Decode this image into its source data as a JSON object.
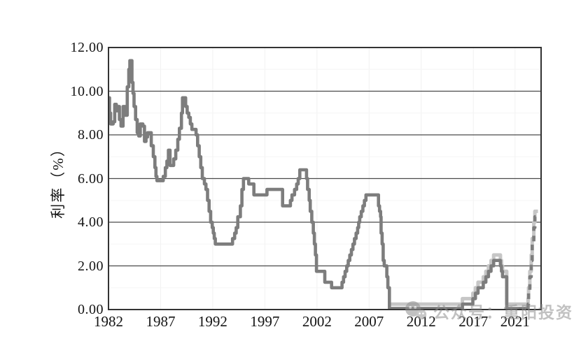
{
  "watermark": {
    "text": "公众号：重阳投资"
  },
  "chart_data": {
    "type": "line",
    "title": "",
    "xlabel": "",
    "ylabel": "利率（%）",
    "ylim": [
      0,
      12
    ],
    "xlim": [
      1982,
      2023.5
    ],
    "grid": "horizontal-major",
    "legend": "none",
    "yticks": [
      "12.00",
      "10.00",
      "8.00",
      "6.00",
      "4.00",
      "2.00",
      "0.00"
    ],
    "ytick_values": [
      12,
      10,
      8,
      6,
      4,
      2,
      0
    ],
    "xticks": [
      "1982",
      "1987",
      "1992",
      "1997",
      "2002",
      "2007",
      "2012",
      "2017",
      "2021"
    ],
    "xtick_values": [
      1982,
      1987,
      1992,
      1997,
      2002,
      2007,
      2012,
      2017,
      2021
    ],
    "series": [
      {
        "name": "light-gray-line-upper-bound",
        "color": "#c6c6c6",
        "style": "solid",
        "width": 5,
        "end": 2023.2,
        "points": [
          [
            2008.95,
            0.25
          ],
          [
            2015.95,
            0.5
          ],
          [
            2016.95,
            0.75
          ],
          [
            2017.2,
            1.0
          ],
          [
            2017.45,
            1.25
          ],
          [
            2017.95,
            1.5
          ],
          [
            2018.2,
            1.75
          ],
          [
            2018.45,
            2.0
          ],
          [
            2018.7,
            2.25
          ],
          [
            2018.95,
            2.5
          ],
          [
            2019.6,
            2.25
          ],
          [
            2019.7,
            2.0
          ],
          [
            2019.8,
            1.75
          ],
          [
            2020.2,
            0.25
          ],
          [
            2022.25,
            0.5
          ],
          [
            2022.3,
            1.0
          ],
          [
            2022.42,
            1.75
          ],
          [
            2022.55,
            2.5
          ],
          [
            2022.65,
            3.25
          ],
          [
            2022.8,
            4.0
          ],
          [
            2022.9,
            4.5
          ]
        ]
      },
      {
        "name": "dark-gray-line-target-rate",
        "color": "#7d7d7d",
        "style": "solid",
        "width": 4.6,
        "end": 2022.2,
        "points": [
          [
            1982.0,
            9.7
          ],
          [
            1982.1,
            9.0
          ],
          [
            1982.2,
            8.5
          ],
          [
            1982.45,
            8.6
          ],
          [
            1982.6,
            9.4
          ],
          [
            1982.75,
            9.1
          ],
          [
            1982.9,
            9.3
          ],
          [
            1983.05,
            8.7
          ],
          [
            1983.2,
            8.4
          ],
          [
            1983.4,
            9.3
          ],
          [
            1983.6,
            8.9
          ],
          [
            1983.8,
            10.2
          ],
          [
            1983.95,
            11.0
          ],
          [
            1984.05,
            11.4
          ],
          [
            1984.25,
            10.4
          ],
          [
            1984.35,
            9.9
          ],
          [
            1984.45,
            9.3
          ],
          [
            1984.6,
            8.7
          ],
          [
            1984.75,
            8.1
          ],
          [
            1984.9,
            7.95
          ],
          [
            1985.05,
            8.5
          ],
          [
            1985.3,
            8.4
          ],
          [
            1985.45,
            7.7
          ],
          [
            1985.6,
            7.9
          ],
          [
            1985.75,
            8.1
          ],
          [
            1986.1,
            7.5
          ],
          [
            1986.3,
            7.0
          ],
          [
            1986.45,
            6.5
          ],
          [
            1986.55,
            6.1
          ],
          [
            1986.65,
            5.9
          ],
          [
            1987.25,
            6.1
          ],
          [
            1987.45,
            6.5
          ],
          [
            1987.6,
            6.8
          ],
          [
            1987.75,
            7.3
          ],
          [
            1987.9,
            6.6
          ],
          [
            1988.25,
            6.9
          ],
          [
            1988.45,
            7.3
          ],
          [
            1988.65,
            7.8
          ],
          [
            1988.8,
            8.3
          ],
          [
            1989.0,
            9.0
          ],
          [
            1989.1,
            9.7
          ],
          [
            1989.4,
            9.3
          ],
          [
            1989.55,
            9.0
          ],
          [
            1989.7,
            8.8
          ],
          [
            1989.85,
            8.5
          ],
          [
            1990.0,
            8.25
          ],
          [
            1990.4,
            8.0
          ],
          [
            1990.55,
            7.5
          ],
          [
            1990.7,
            7.0
          ],
          [
            1990.85,
            6.5
          ],
          [
            1991.0,
            6.0
          ],
          [
            1991.2,
            5.75
          ],
          [
            1991.35,
            5.5
          ],
          [
            1991.5,
            5.0
          ],
          [
            1991.65,
            4.5
          ],
          [
            1991.8,
            4.0
          ],
          [
            1991.95,
            3.75
          ],
          [
            1992.05,
            3.5
          ],
          [
            1992.15,
            3.25
          ],
          [
            1992.25,
            3.0
          ],
          [
            1993.9,
            3.25
          ],
          [
            1994.1,
            3.5
          ],
          [
            1994.25,
            3.75
          ],
          [
            1994.4,
            4.25
          ],
          [
            1994.65,
            4.75
          ],
          [
            1994.8,
            5.5
          ],
          [
            1994.95,
            6.0
          ],
          [
            1995.45,
            5.75
          ],
          [
            1995.95,
            5.25
          ],
          [
            1997.2,
            5.5
          ],
          [
            1998.7,
            4.75
          ],
          [
            1999.45,
            5.0
          ],
          [
            1999.6,
            5.25
          ],
          [
            1999.85,
            5.5
          ],
          [
            2000.05,
            5.75
          ],
          [
            2000.2,
            6.0
          ],
          [
            2000.35,
            6.4
          ],
          [
            2001.0,
            6.0
          ],
          [
            2001.1,
            5.5
          ],
          [
            2001.25,
            5.0
          ],
          [
            2001.35,
            4.5
          ],
          [
            2001.5,
            4.0
          ],
          [
            2001.65,
            3.5
          ],
          [
            2001.75,
            3.0
          ],
          [
            2001.85,
            2.5
          ],
          [
            2001.95,
            1.75
          ],
          [
            2002.75,
            1.25
          ],
          [
            2003.4,
            1.0
          ],
          [
            2004.4,
            1.25
          ],
          [
            2004.55,
            1.5
          ],
          [
            2004.7,
            1.75
          ],
          [
            2004.85,
            2.0
          ],
          [
            2005.0,
            2.25
          ],
          [
            2005.15,
            2.5
          ],
          [
            2005.3,
            2.75
          ],
          [
            2005.45,
            3.0
          ],
          [
            2005.6,
            3.25
          ],
          [
            2005.75,
            3.5
          ],
          [
            2005.9,
            3.75
          ],
          [
            2006.0,
            4.0
          ],
          [
            2006.1,
            4.25
          ],
          [
            2006.25,
            4.5
          ],
          [
            2006.4,
            4.75
          ],
          [
            2006.55,
            5.0
          ],
          [
            2006.7,
            5.25
          ],
          [
            2007.9,
            4.75
          ],
          [
            2008.0,
            4.5
          ],
          [
            2008.1,
            4.25
          ],
          [
            2008.15,
            3.5
          ],
          [
            2008.25,
            3.0
          ],
          [
            2008.35,
            2.25
          ],
          [
            2008.45,
            2.0
          ],
          [
            2008.7,
            1.5
          ],
          [
            2008.8,
            1.0
          ],
          [
            2008.95,
            0.05
          ],
          [
            2015.95,
            0.25
          ],
          [
            2016.95,
            0.5
          ],
          [
            2017.2,
            0.75
          ],
          [
            2017.45,
            1.0
          ],
          [
            2017.95,
            1.25
          ],
          [
            2018.2,
            1.5
          ],
          [
            2018.45,
            1.75
          ],
          [
            2018.7,
            2.0
          ],
          [
            2018.95,
            2.25
          ],
          [
            2019.6,
            2.0
          ],
          [
            2019.7,
            1.75
          ],
          [
            2019.8,
            1.5
          ],
          [
            2020.2,
            0.05
          ]
        ]
      },
      {
        "name": "dark-gray-dashed-tail-lower-bound",
        "color": "#7d7d7d",
        "style": "dashed",
        "width": 4.6,
        "end": 2023.1,
        "points": [
          [
            2022.2,
            0.05
          ],
          [
            2022.25,
            0.25
          ],
          [
            2022.3,
            0.75
          ],
          [
            2022.42,
            1.5
          ],
          [
            2022.55,
            2.25
          ],
          [
            2022.65,
            3.0
          ],
          [
            2022.8,
            3.75
          ],
          [
            2022.9,
            4.25
          ]
        ]
      }
    ]
  }
}
